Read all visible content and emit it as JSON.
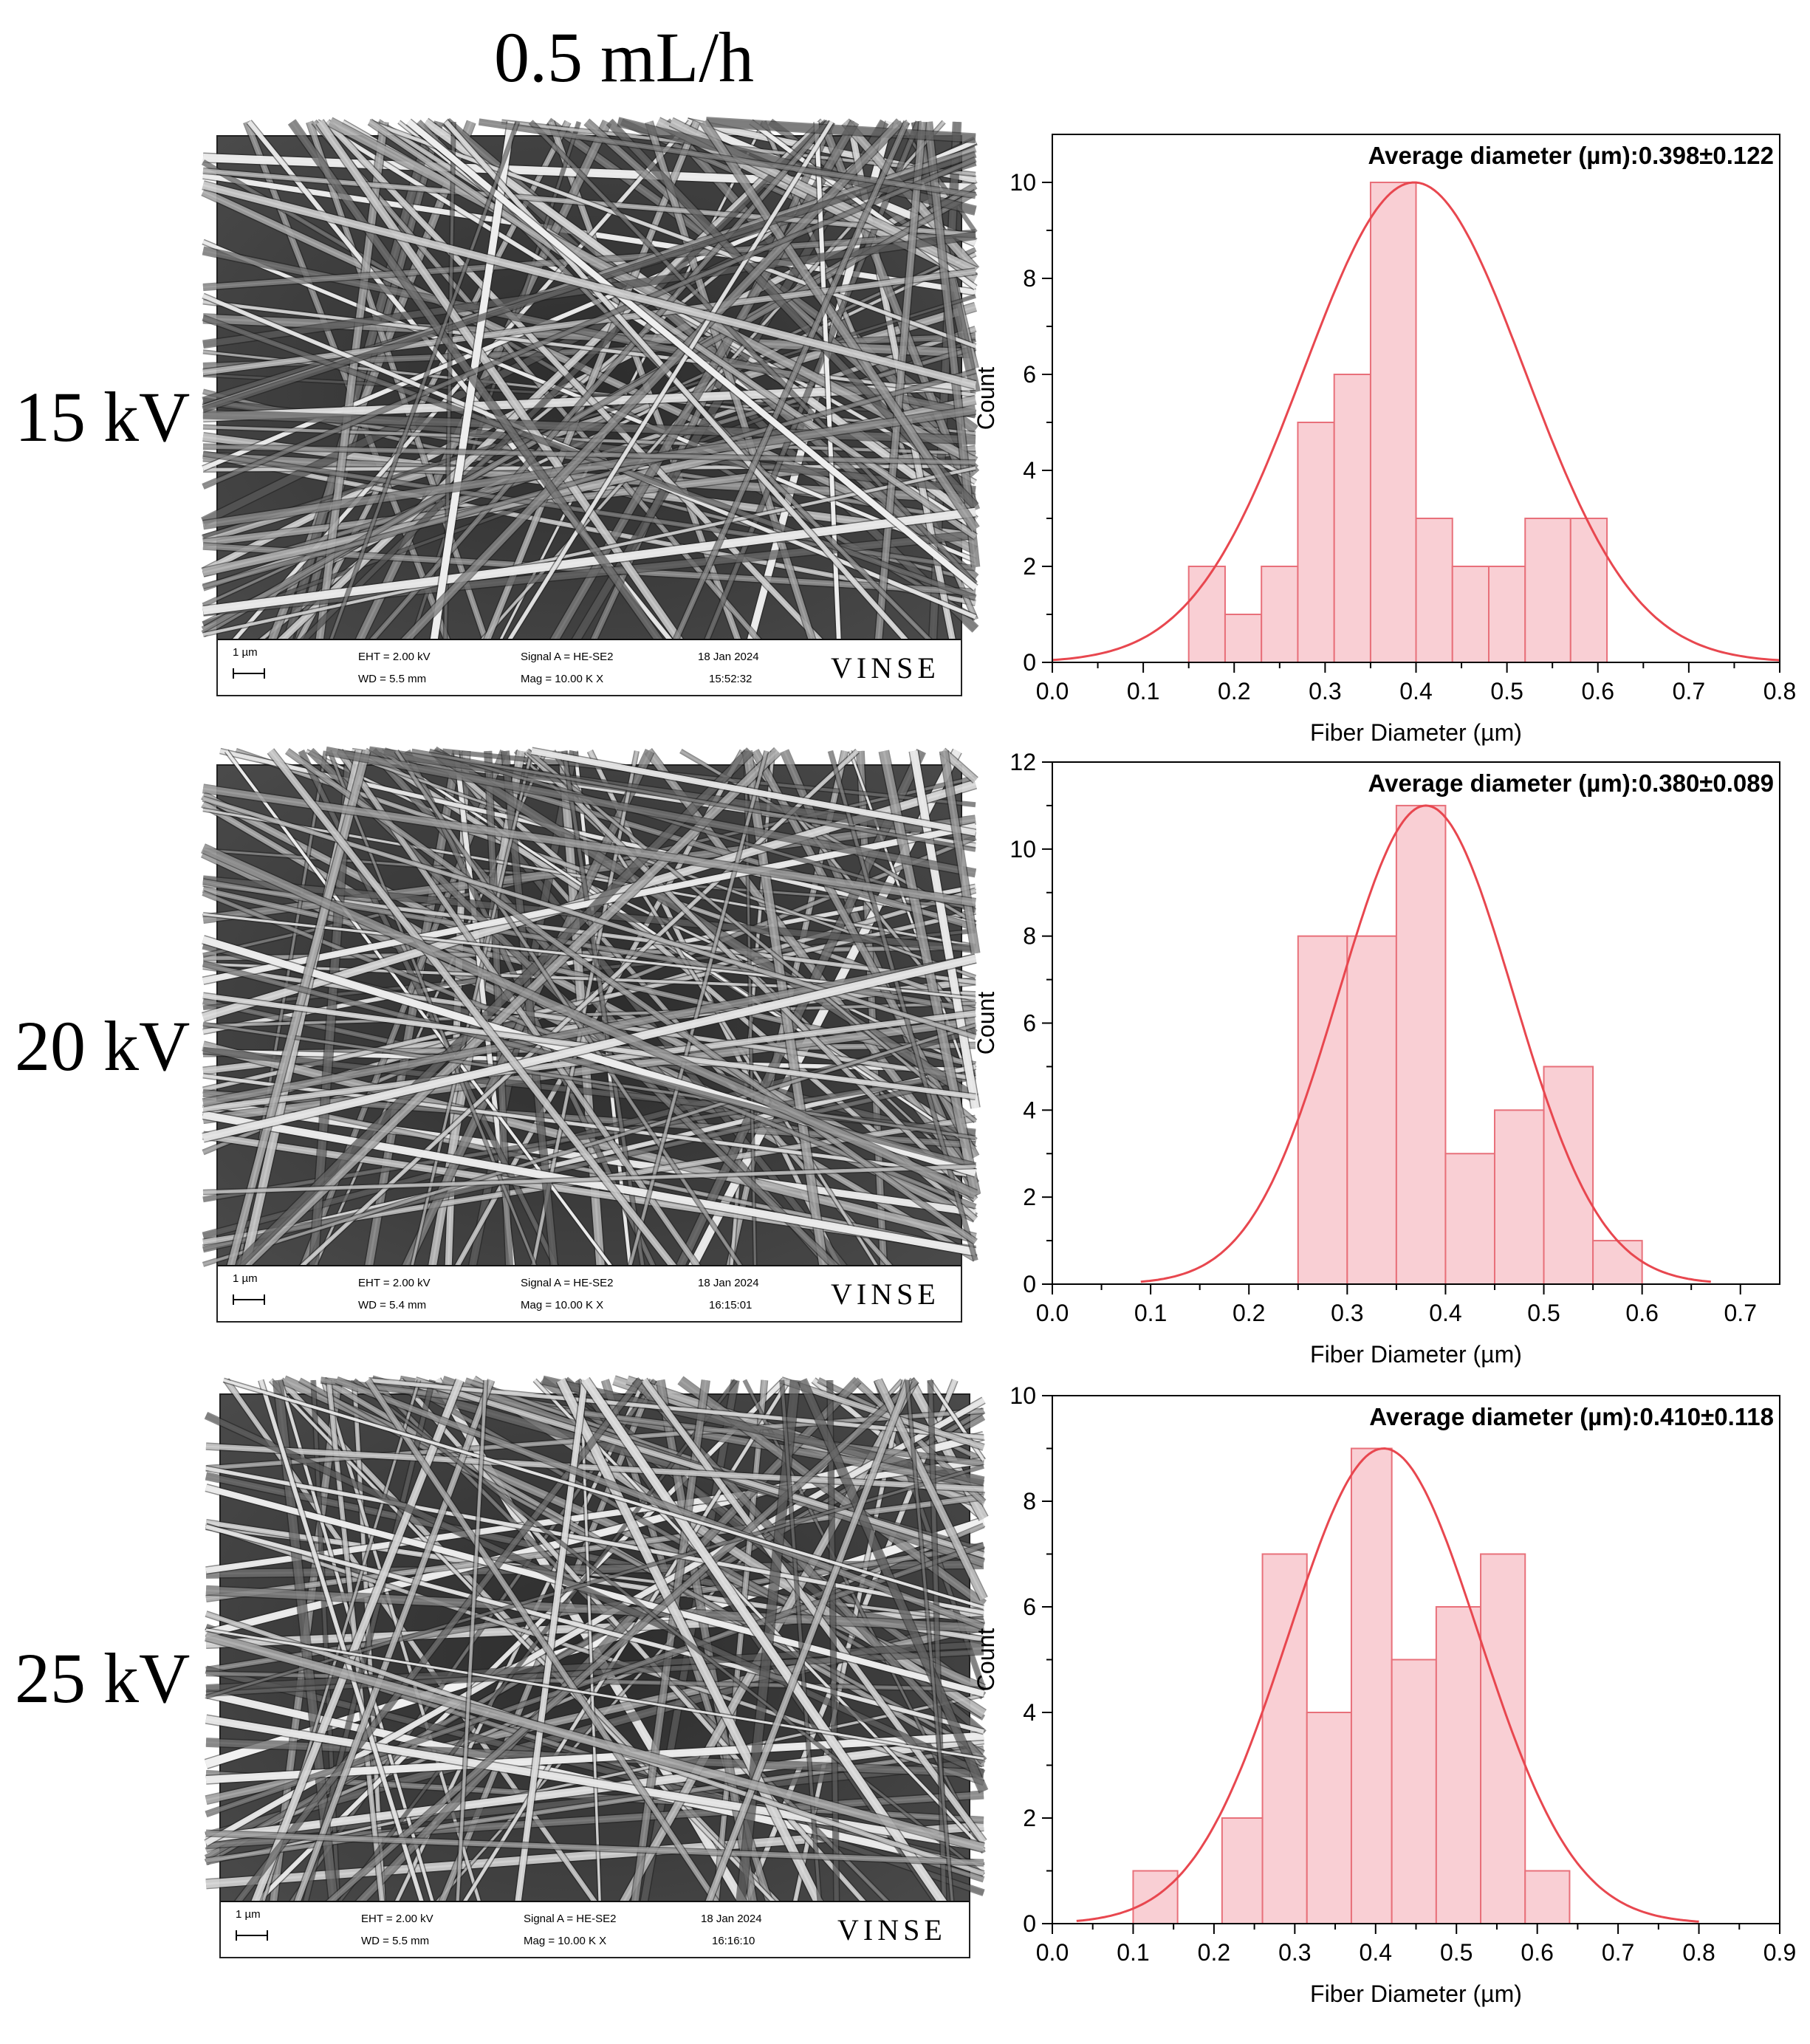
{
  "page": {
    "title": "0.5 mL/h"
  },
  "rows": [
    {
      "label": "15 kV",
      "sem": {
        "scale": "1 µm",
        "eht": "EHT =  2.00 kV",
        "wd": "WD = 5.5 mm",
        "signal": "Signal A = HE-SE2",
        "mag": "Mag =  10.00 K X",
        "date": "18 Jan 2024",
        "time": "15:52:32",
        "brand": "VINSE"
      }
    },
    {
      "label": "20 kV",
      "sem": {
        "scale": "1 µm",
        "eht": "EHT =  2.00 kV",
        "wd": "WD = 5.4 mm",
        "signal": "Signal A = HE-SE2",
        "mag": "Mag =  10.00 K X",
        "date": "18 Jan 2024",
        "time": "16:15:01",
        "brand": "VINSE"
      }
    },
    {
      "label": "25 kV",
      "sem": {
        "scale": "1 µm",
        "eht": "EHT =  2.00 kV",
        "wd": "WD = 5.5 mm",
        "signal": "Signal A = HE-SE2",
        "mag": "Mag =  10.00 K X",
        "date": "18 Jan 2024",
        "time": "16:16:10",
        "brand": "VINSE"
      }
    }
  ],
  "colors": {
    "bar_fill": "#f9cfd4",
    "bar_stroke": "#e8707a",
    "curve": "#e8474f"
  },
  "chart_data": [
    {
      "type": "bar",
      "title": "Average diameter (µm):0.398±0.122",
      "xlabel": "Fiber Diameter (µm)",
      "ylabel": "Count",
      "xlim": [
        0.0,
        0.8
      ],
      "ylim": [
        0,
        11
      ],
      "xticks": [
        "0.0",
        "0.1",
        "0.2",
        "0.3",
        "0.4",
        "0.5",
        "0.6",
        "0.7",
        "0.8"
      ],
      "yticks": [
        "0",
        "2",
        "4",
        "6",
        "8",
        "10"
      ],
      "bins": [
        {
          "x0": 0.15,
          "x1": 0.19,
          "count": 2
        },
        {
          "x0": 0.19,
          "x1": 0.23,
          "count": 1
        },
        {
          "x0": 0.23,
          "x1": 0.27,
          "count": 2
        },
        {
          "x0": 0.27,
          "x1": 0.31,
          "count": 5
        },
        {
          "x0": 0.31,
          "x1": 0.35,
          "count": 6
        },
        {
          "x0": 0.35,
          "x1": 0.4,
          "count": 10
        },
        {
          "x0": 0.4,
          "x1": 0.44,
          "count": 3
        },
        {
          "x0": 0.44,
          "x1": 0.48,
          "count": 2
        },
        {
          "x0": 0.48,
          "x1": 0.52,
          "count": 2
        },
        {
          "x0": 0.52,
          "x1": 0.57,
          "count": 3
        },
        {
          "x0": 0.57,
          "x1": 0.61,
          "count": 3
        }
      ],
      "fit": {
        "mean": 0.398,
        "sd": 0.122,
        "peak": 10.0,
        "x_range": [
          0.0,
          0.8
        ]
      }
    },
    {
      "type": "bar",
      "title": "Average diameter (µm):0.380±0.089",
      "xlabel": "Fiber Diameter (µm)",
      "ylabel": "Count",
      "xlim": [
        0.0,
        0.74
      ],
      "ylim": [
        0,
        12
      ],
      "xticks": [
        "0.0",
        "0.1",
        "0.2",
        "0.3",
        "0.4",
        "0.5",
        "0.6",
        "0.7"
      ],
      "yticks": [
        "0",
        "2",
        "4",
        "6",
        "8",
        "10",
        "12"
      ],
      "bins": [
        {
          "x0": 0.25,
          "x1": 0.3,
          "count": 8
        },
        {
          "x0": 0.3,
          "x1": 0.35,
          "count": 8
        },
        {
          "x0": 0.35,
          "x1": 0.4,
          "count": 11
        },
        {
          "x0": 0.4,
          "x1": 0.45,
          "count": 3
        },
        {
          "x0": 0.45,
          "x1": 0.5,
          "count": 4
        },
        {
          "x0": 0.5,
          "x1": 0.55,
          "count": 5
        },
        {
          "x0": 0.55,
          "x1": 0.6,
          "count": 1
        }
      ],
      "fit": {
        "mean": 0.38,
        "sd": 0.089,
        "peak": 11.0,
        "x_range": [
          0.09,
          0.67
        ]
      }
    },
    {
      "type": "bar",
      "title": "Average diameter (µm):0.410±0.118",
      "xlabel": "Fiber Diameter (µm)",
      "ylabel": "Count",
      "xlim": [
        0.0,
        0.9
      ],
      "ylim": [
        0,
        10
      ],
      "xticks": [
        "0.0",
        "0.1",
        "0.2",
        "0.3",
        "0.4",
        "0.5",
        "0.6",
        "0.7",
        "0.8",
        "0.9"
      ],
      "yticks": [
        "0",
        "2",
        "4",
        "6",
        "8",
        "10"
      ],
      "bins": [
        {
          "x0": 0.1,
          "x1": 0.155,
          "count": 1
        },
        {
          "x0": 0.21,
          "x1": 0.26,
          "count": 2
        },
        {
          "x0": 0.26,
          "x1": 0.315,
          "count": 7
        },
        {
          "x0": 0.315,
          "x1": 0.37,
          "count": 4
        },
        {
          "x0": 0.37,
          "x1": 0.42,
          "count": 9
        },
        {
          "x0": 0.42,
          "x1": 0.475,
          "count": 5
        },
        {
          "x0": 0.475,
          "x1": 0.53,
          "count": 6
        },
        {
          "x0": 0.53,
          "x1": 0.585,
          "count": 7
        },
        {
          "x0": 0.585,
          "x1": 0.64,
          "count": 1
        }
      ],
      "fit": {
        "mean": 0.41,
        "sd": 0.118,
        "peak": 9.0,
        "x_range": [
          0.03,
          0.8
        ]
      }
    }
  ]
}
